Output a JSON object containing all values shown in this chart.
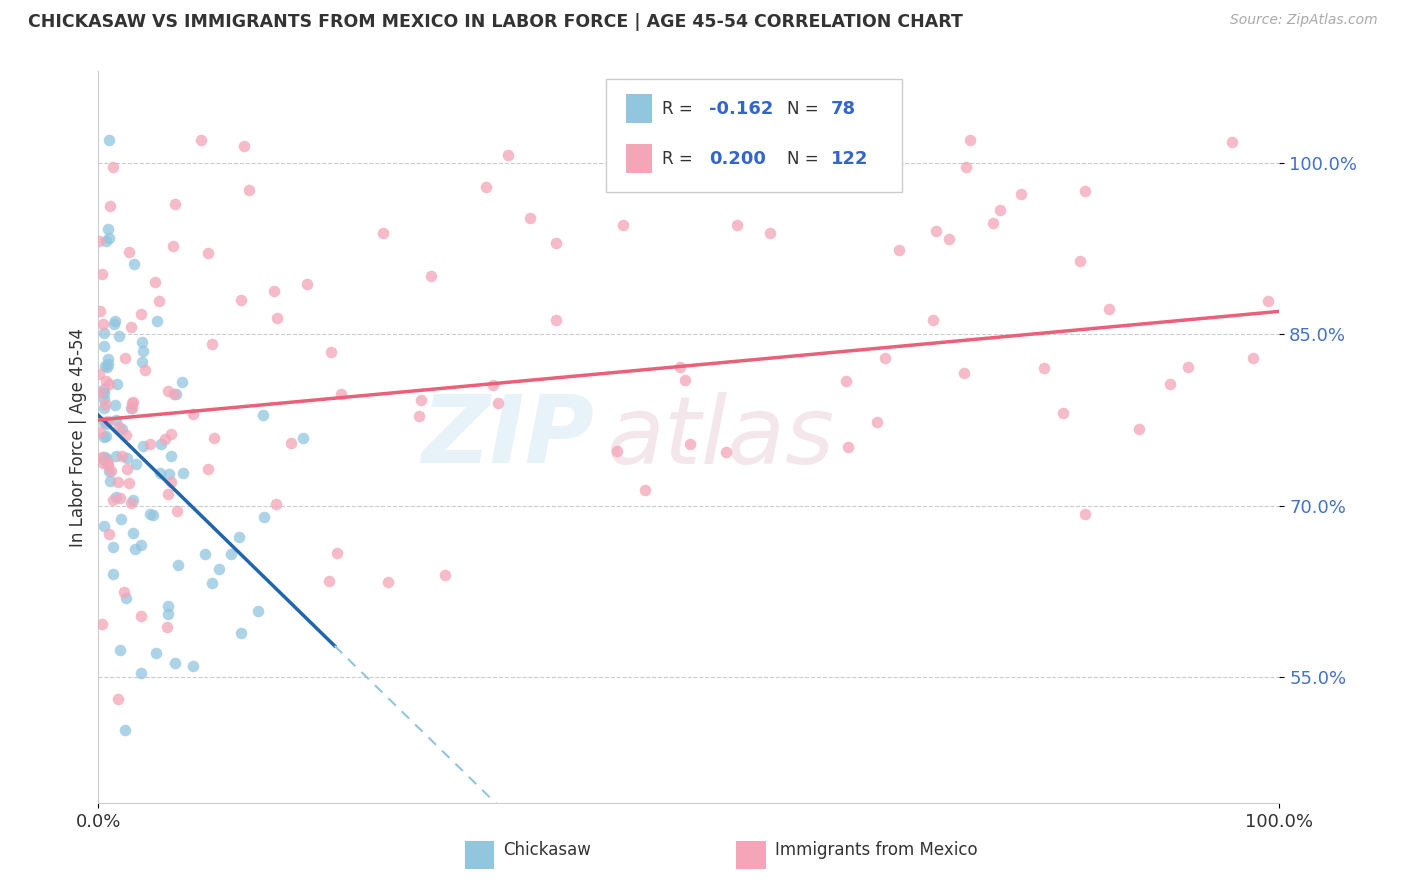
{
  "title": "CHICKASAW VS IMMIGRANTS FROM MEXICO IN LABOR FORCE | AGE 45-54 CORRELATION CHART",
  "source": "Source: ZipAtlas.com",
  "ylabel": "In Labor Force | Age 45-54",
  "xlim": [
    0.0,
    1.0
  ],
  "ylim": [
    0.44,
    1.08
  ],
  "ytick_vals": [
    0.55,
    0.7,
    0.85,
    1.0
  ],
  "ytick_labels": [
    "55.0%",
    "70.0%",
    "85.0%",
    "100.0%"
  ],
  "xtick_labels": [
    "0.0%",
    "100.0%"
  ],
  "color_chickasaw": "#92c5de",
  "color_mexico": "#f4a5b8",
  "trend_color_chickasaw": "#2166ac",
  "trend_color_mexico": "#e8607a",
  "trend_color_dashed": "#92c5de",
  "ytick_color": "#4472c4",
  "watermark_zip": "ZIP",
  "watermark_atlas": "atlas",
  "chickasaw_seed": 42,
  "mexico_seed": 99
}
